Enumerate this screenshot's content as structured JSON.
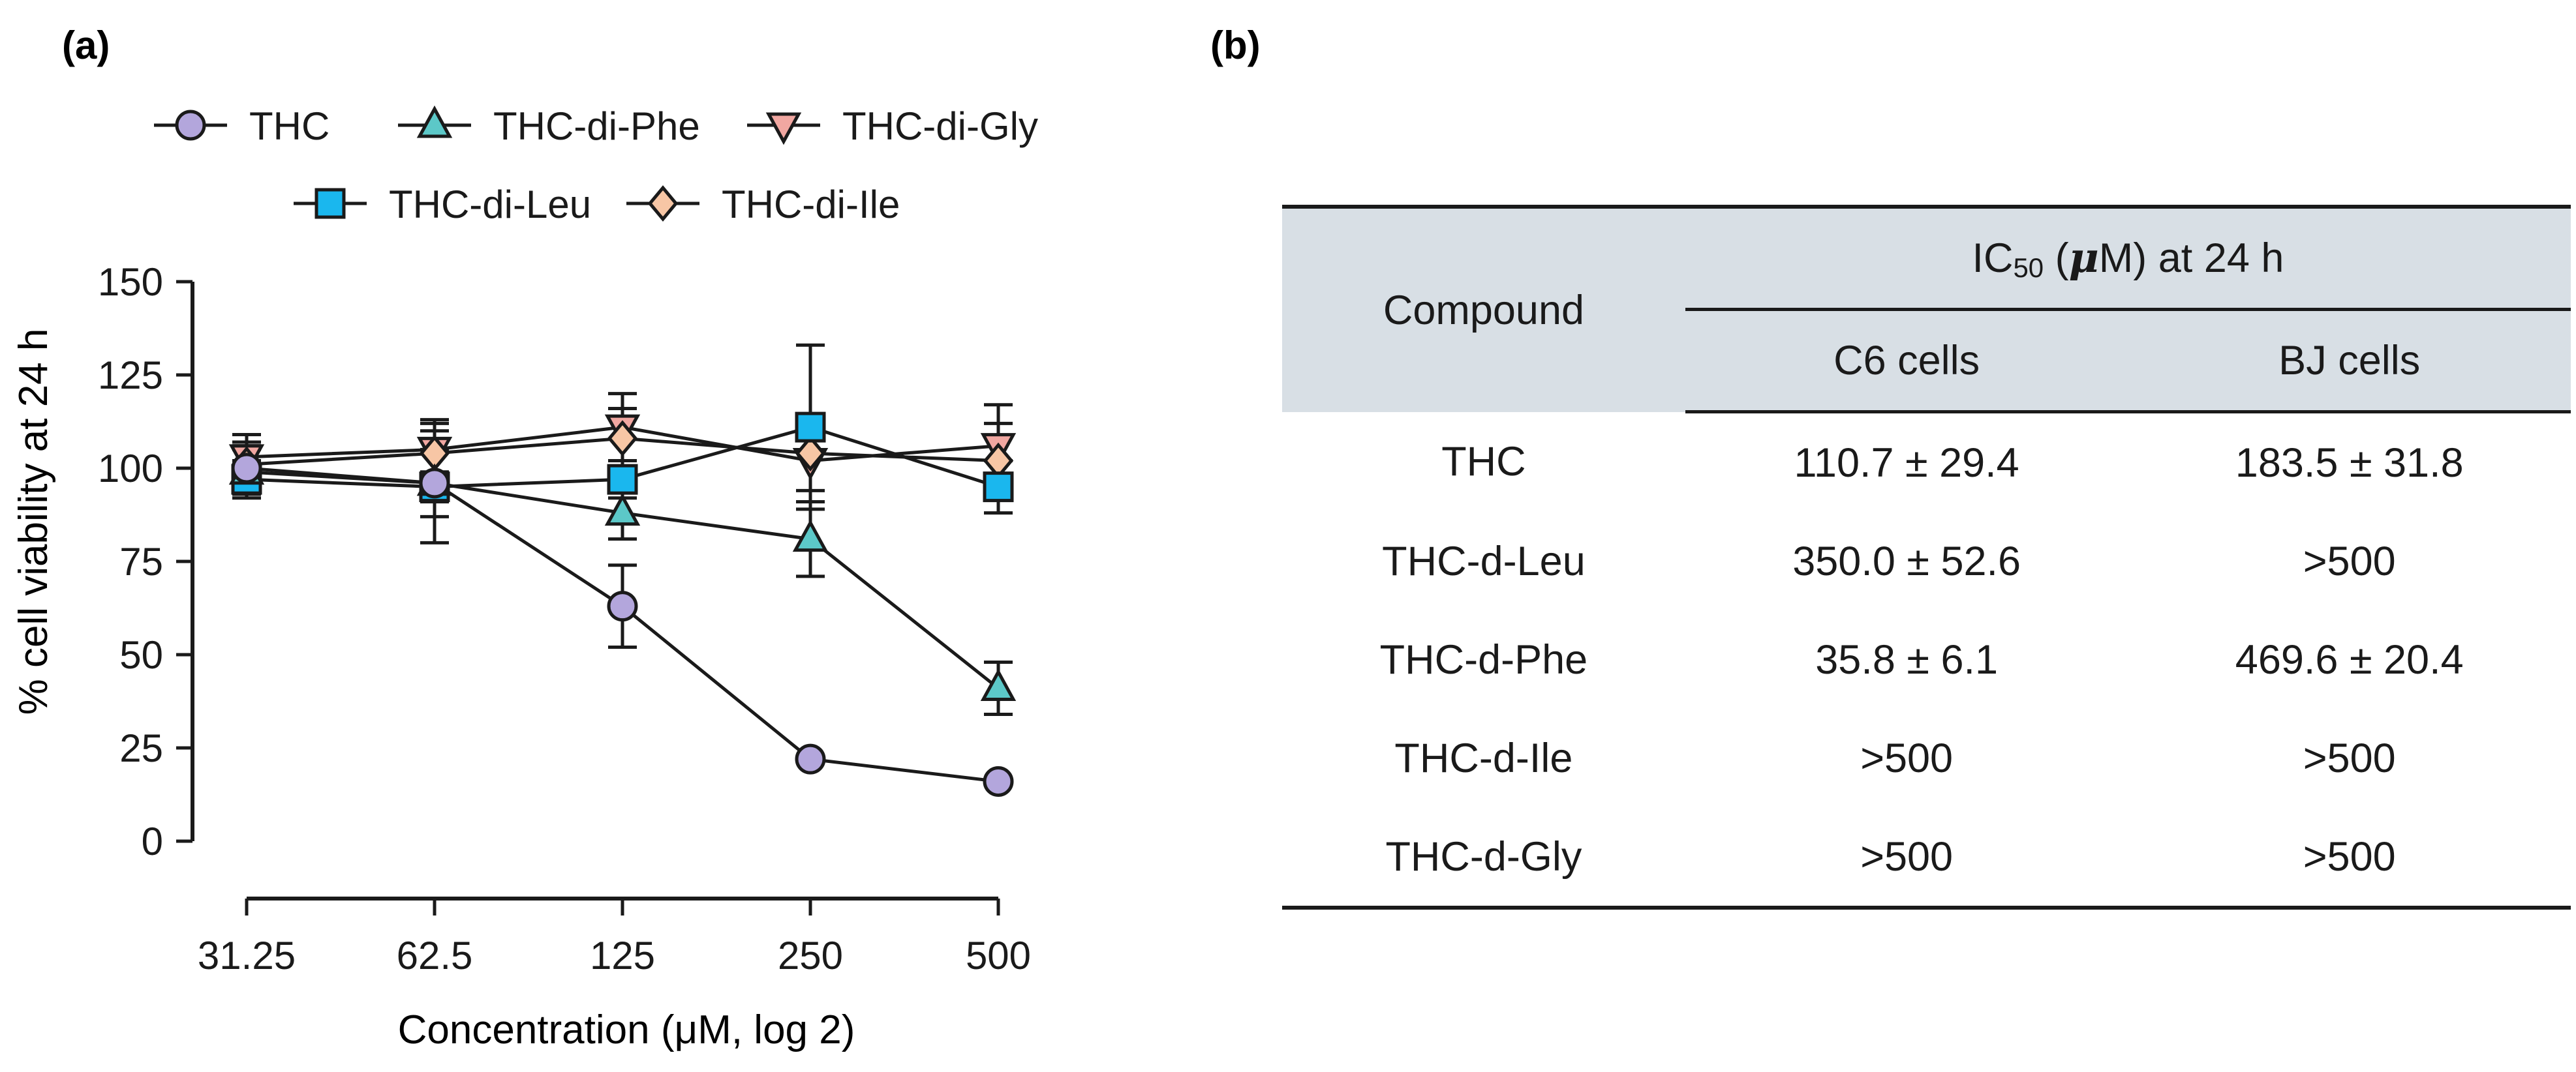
{
  "panel_a_label": "(a)",
  "panel_b_label": "(b)",
  "chart_data": {
    "type": "line",
    "title": "",
    "xlabel": "Concentration (μM, log 2)",
    "ylabel": "% cell viability at 24 h",
    "x": [
      31.25,
      62.5,
      125,
      250,
      500
    ],
    "x_tick_labels": [
      "31.25",
      "62.5",
      "125",
      "250",
      "500"
    ],
    "x_scale": "log2",
    "ylim": [
      0,
      150
    ],
    "y_ticks": [
      0,
      25,
      50,
      75,
      100,
      125,
      150
    ],
    "grid": false,
    "legend_position": "top",
    "series": [
      {
        "name": "THC",
        "marker": "circle",
        "color": "#b3a6dc",
        "values": [
          100,
          96,
          63,
          22,
          16
        ],
        "errors": [
          7,
          16,
          11,
          0,
          0
        ]
      },
      {
        "name": "THC-di-Phe",
        "marker": "triangle-up",
        "color": "#5cc8c8",
        "values": [
          99,
          96,
          88,
          81,
          41
        ],
        "errors": [
          6,
          9,
          7,
          10,
          7
        ]
      },
      {
        "name": "THC-di-Gly",
        "marker": "triangle-down",
        "color": "#f1a7a1",
        "values": [
          103,
          105,
          111,
          102,
          106
        ],
        "errors": [
          6,
          8,
          9,
          11,
          11
        ]
      },
      {
        "name": "THC-di-Leu",
        "marker": "square",
        "color": "#1ab7ee",
        "values": [
          97,
          95,
          97,
          111,
          95
        ],
        "errors": [
          5,
          4,
          5,
          22,
          7
        ]
      },
      {
        "name": "THC-di-Ile",
        "marker": "diamond",
        "color": "#f7c6a5",
        "values": [
          101,
          104,
          108,
          104,
          102
        ],
        "errors": [
          5,
          6,
          8,
          10,
          10
        ]
      }
    ]
  },
  "table": {
    "header_compound": "Compound",
    "header_ic50_prefix": "IC",
    "header_ic50_sub": "50",
    "header_ic50_open": " (",
    "header_ic50_mu": "μ",
    "header_ic50_rest": "M) at 24 h",
    "col_c6": "C6 cells",
    "col_bj": "BJ cells",
    "rows": [
      {
        "compound": "THC",
        "c6": "110.7 ± 29.4",
        "bj": "183.5 ± 31.8"
      },
      {
        "compound": "THC-d-Leu",
        "c6": "350.0 ± 52.6",
        "bj": ">500"
      },
      {
        "compound": "THC-d-Phe",
        "c6": "35.8 ± 6.1",
        "bj": "469.6 ± 20.4"
      },
      {
        "compound": "THC-d-Ile",
        "c6": ">500",
        "bj": ">500"
      },
      {
        "compound": "THC-d-Gly",
        "c6": ">500",
        "bj": ">500"
      }
    ]
  }
}
